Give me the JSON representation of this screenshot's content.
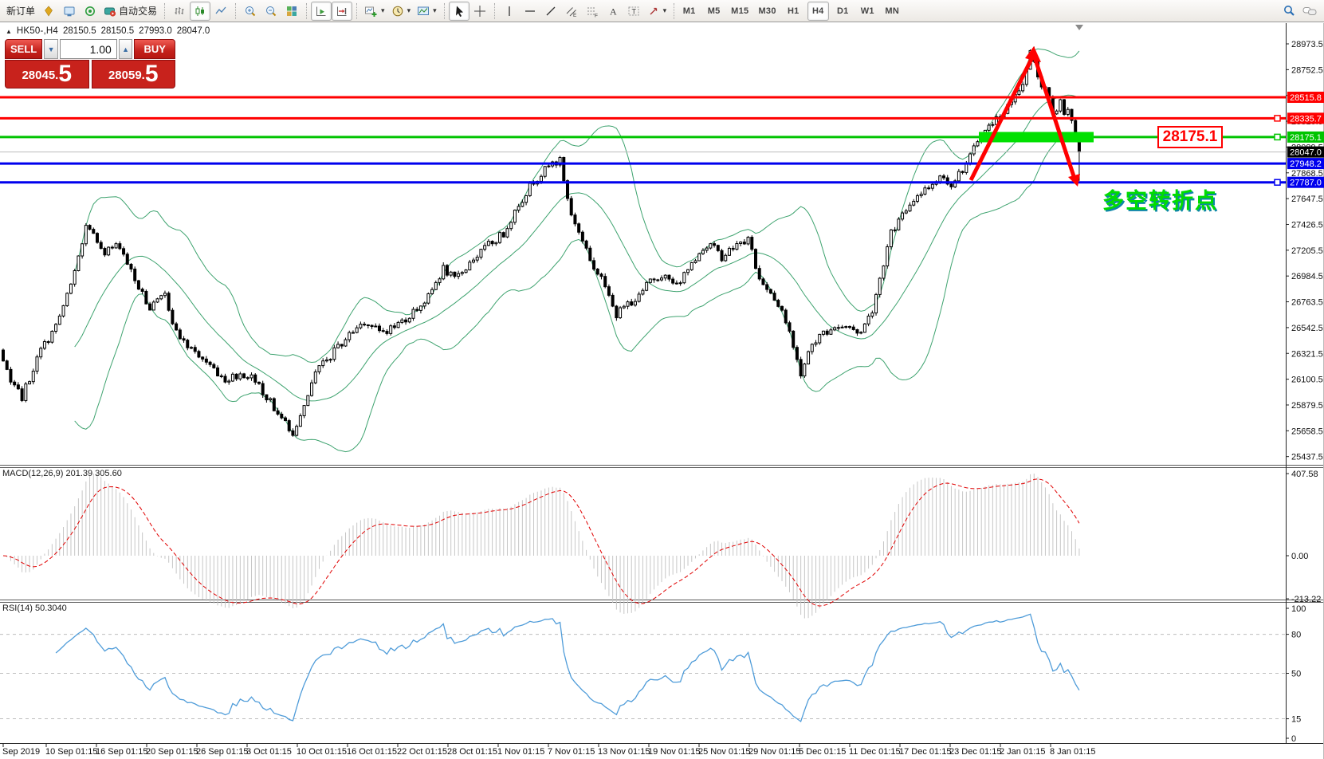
{
  "toolbar": {
    "new_order": "新订单",
    "autotrading": "自动交易",
    "timeframes": [
      "M1",
      "M5",
      "M15",
      "M30",
      "H1",
      "H4",
      "D1",
      "W1",
      "MN"
    ],
    "active_timeframe": "H4"
  },
  "chart_header": {
    "symbol": "HK50-,H4",
    "open": "28150.5",
    "high": "28150.5",
    "low": "27993.0",
    "close": "28047.0"
  },
  "trade_panel": {
    "sell_label": "SELL",
    "buy_label": "BUY",
    "volume": "1.00",
    "sell_price": "28045.",
    "sell_price_big": "5",
    "buy_price": "28059.",
    "buy_price_big": "5"
  },
  "annotations": {
    "price_box": "28175.1",
    "turning_point": "多空转折点"
  },
  "indicators": {
    "macd_label": "MACD(12,26,9) 201.39 305.60",
    "rsi_label": "RSI(14) 50.3040"
  },
  "price_axis": {
    "ticks": [
      "28973.5",
      "28752.5",
      "28531.5",
      "28310.5",
      "28089.5",
      "27868.5",
      "27647.5",
      "27426.5",
      "27205.5",
      "26984.5",
      "26763.5",
      "26542.5",
      "26321.5",
      "26100.5",
      "25879.5",
      "25658.5",
      "25437.5"
    ],
    "line_labels": [
      {
        "text": "28515.8",
        "bg": "#ff0000",
        "fg": "#ffffff",
        "price": 28515.8
      },
      {
        "text": "28335.7",
        "bg": "#ff0000",
        "fg": "#ffffff",
        "price": 28335.7
      },
      {
        "text": "28175.1",
        "bg": "#00c400",
        "fg": "#ffffff",
        "price": 28175.1
      },
      {
        "text": "28047.0",
        "bg": "#000000",
        "fg": "#ffffff",
        "price": 28047.0
      },
      {
        "text": "27948.2",
        "bg": "#0000ee",
        "fg": "#ffffff",
        "price": 27948.2
      },
      {
        "text": "27787.0",
        "bg": "#0000ee",
        "fg": "#ffffff",
        "price": 27787.0
      }
    ]
  },
  "macd_axis": [
    "407.58",
    "0.00",
    "-213.22"
  ],
  "rsi_axis": [
    100,
    80,
    50,
    15,
    0
  ],
  "date_axis": [
    "Sep 2019",
    "10 Sep 01:15",
    "16 Sep 01:15",
    "20 Sep 01:15",
    "26 Sep 01:15",
    "3 Oct 01:15",
    "10 Oct 01:15",
    "16 Oct 01:15",
    "22 Oct 01:15",
    "28 Oct 01:15",
    "1 Nov 01:15",
    "7 Nov 01:15",
    "13 Nov 01:15",
    "19 Nov 01:15",
    "25 Nov 01:15",
    "29 Nov 01:15",
    "5 Dec 01:15",
    "11 Dec 01:15",
    "17 Dec 01:15",
    "23 Dec 01:15",
    "2 Jan 01:15",
    "8 Jan 01:15"
  ],
  "chart_data": {
    "type": "candlestick",
    "symbol": "HK50-",
    "timeframe": "H4",
    "title": "HK50-,H4",
    "ohlc_current": {
      "open": 28150.5,
      "high": 28150.5,
      "low": 27993.0,
      "close": 28047.0
    },
    "y_axis_range": [
      25437.5,
      28973.5
    ],
    "y_tick_step": 221.0,
    "bar_count": 287,
    "last_close": 28047.0,
    "peak_high": 28950,
    "last_low": 27800,
    "waypoints": [
      [
        0,
        26350
      ],
      [
        3,
        26050
      ],
      [
        6,
        25950
      ],
      [
        11,
        26350
      ],
      [
        15,
        26550
      ],
      [
        19,
        26900
      ],
      [
        23,
        27400
      ],
      [
        28,
        27200
      ],
      [
        32,
        27250
      ],
      [
        36,
        26950
      ],
      [
        40,
        26700
      ],
      [
        44,
        26820
      ],
      [
        47,
        26500
      ],
      [
        51,
        26350
      ],
      [
        55,
        26250
      ],
      [
        60,
        26100
      ],
      [
        64,
        26150
      ],
      [
        68,
        26100
      ],
      [
        71,
        25950
      ],
      [
        74,
        25800
      ],
      [
        78,
        25650
      ],
      [
        81,
        25850
      ],
      [
        84,
        26150
      ],
      [
        88,
        26300
      ],
      [
        92,
        26450
      ],
      [
        97,
        26600
      ],
      [
        101,
        26500
      ],
      [
        105,
        26550
      ],
      [
        109,
        26650
      ],
      [
        114,
        26800
      ],
      [
        118,
        27050
      ],
      [
        121,
        26950
      ],
      [
        125,
        27100
      ],
      [
        130,
        27250
      ],
      [
        134,
        27350
      ],
      [
        138,
        27600
      ],
      [
        142,
        27800
      ],
      [
        147,
        27950
      ],
      [
        149,
        27970
      ],
      [
        152,
        27500
      ],
      [
        155,
        27300
      ],
      [
        158,
        27050
      ],
      [
        162,
        26850
      ],
      [
        164,
        26650
      ],
      [
        167,
        26750
      ],
      [
        170,
        26800
      ],
      [
        173,
        26950
      ],
      [
        176,
        27000
      ],
      [
        180,
        26900
      ],
      [
        183,
        27050
      ],
      [
        186,
        27200
      ],
      [
        189,
        27250
      ],
      [
        192,
        27150
      ],
      [
        196,
        27250
      ],
      [
        199,
        27300
      ],
      [
        202,
        26950
      ],
      [
        205,
        26850
      ],
      [
        208,
        26700
      ],
      [
        213,
        26150
      ],
      [
        216,
        26400
      ],
      [
        219,
        26500
      ],
      [
        222,
        26550
      ],
      [
        225,
        26550
      ],
      [
        229,
        26500
      ],
      [
        232,
        26700
      ],
      [
        235,
        27100
      ],
      [
        237,
        27350
      ],
      [
        240,
        27500
      ],
      [
        243,
        27650
      ],
      [
        247,
        27750
      ],
      [
        250,
        27850
      ],
      [
        253,
        27780
      ],
      [
        256,
        27900
      ],
      [
        258,
        28000
      ],
      [
        260,
        28150
      ],
      [
        264,
        28300
      ],
      [
        267,
        28400
      ],
      [
        270,
        28520
      ],
      [
        272,
        28650
      ],
      [
        274,
        28900
      ],
      [
        276,
        28700
      ],
      [
        279,
        28500
      ],
      [
        280,
        28350
      ],
      [
        281,
        28420
      ],
      [
        282,
        28480
      ],
      [
        283,
        28400
      ],
      [
        284,
        28420
      ],
      [
        285,
        28300
      ],
      [
        286,
        28150
      ],
      [
        287,
        28047
      ]
    ],
    "horizontal_lines": [
      {
        "price": 28515.8,
        "color": "#ff0000",
        "width": 3,
        "marker": false
      },
      {
        "price": 28335.7,
        "color": "#ff0000",
        "width": 3,
        "marker": true
      },
      {
        "price": 28175.1,
        "color": "#00c400",
        "width": 3,
        "marker": true
      },
      {
        "price": 28047.0,
        "color": "#bdbdbd",
        "width": 1,
        "marker": false
      },
      {
        "price": 27948.2,
        "color": "#0000ee",
        "width": 3,
        "marker": false
      },
      {
        "price": 27787.0,
        "color": "#0000ee",
        "width": 3,
        "marker": true
      }
    ],
    "indicators": {
      "bollinger": {
        "period": 20,
        "deviation": 2,
        "color": "#3ea36f"
      },
      "macd": {
        "fast": 12,
        "slow": 26,
        "signal": 9,
        "main_value": 201.39,
        "signal_value": 305.6,
        "hist_color": "#c6c6c6",
        "signal_color": "#e00000",
        "axis_max": 407.58,
        "axis_min": -213.22
      },
      "rsi": {
        "period": 14,
        "value": 50.304,
        "color": "#4f9cd9",
        "levels": [
          80,
          50,
          15
        ]
      }
    }
  }
}
